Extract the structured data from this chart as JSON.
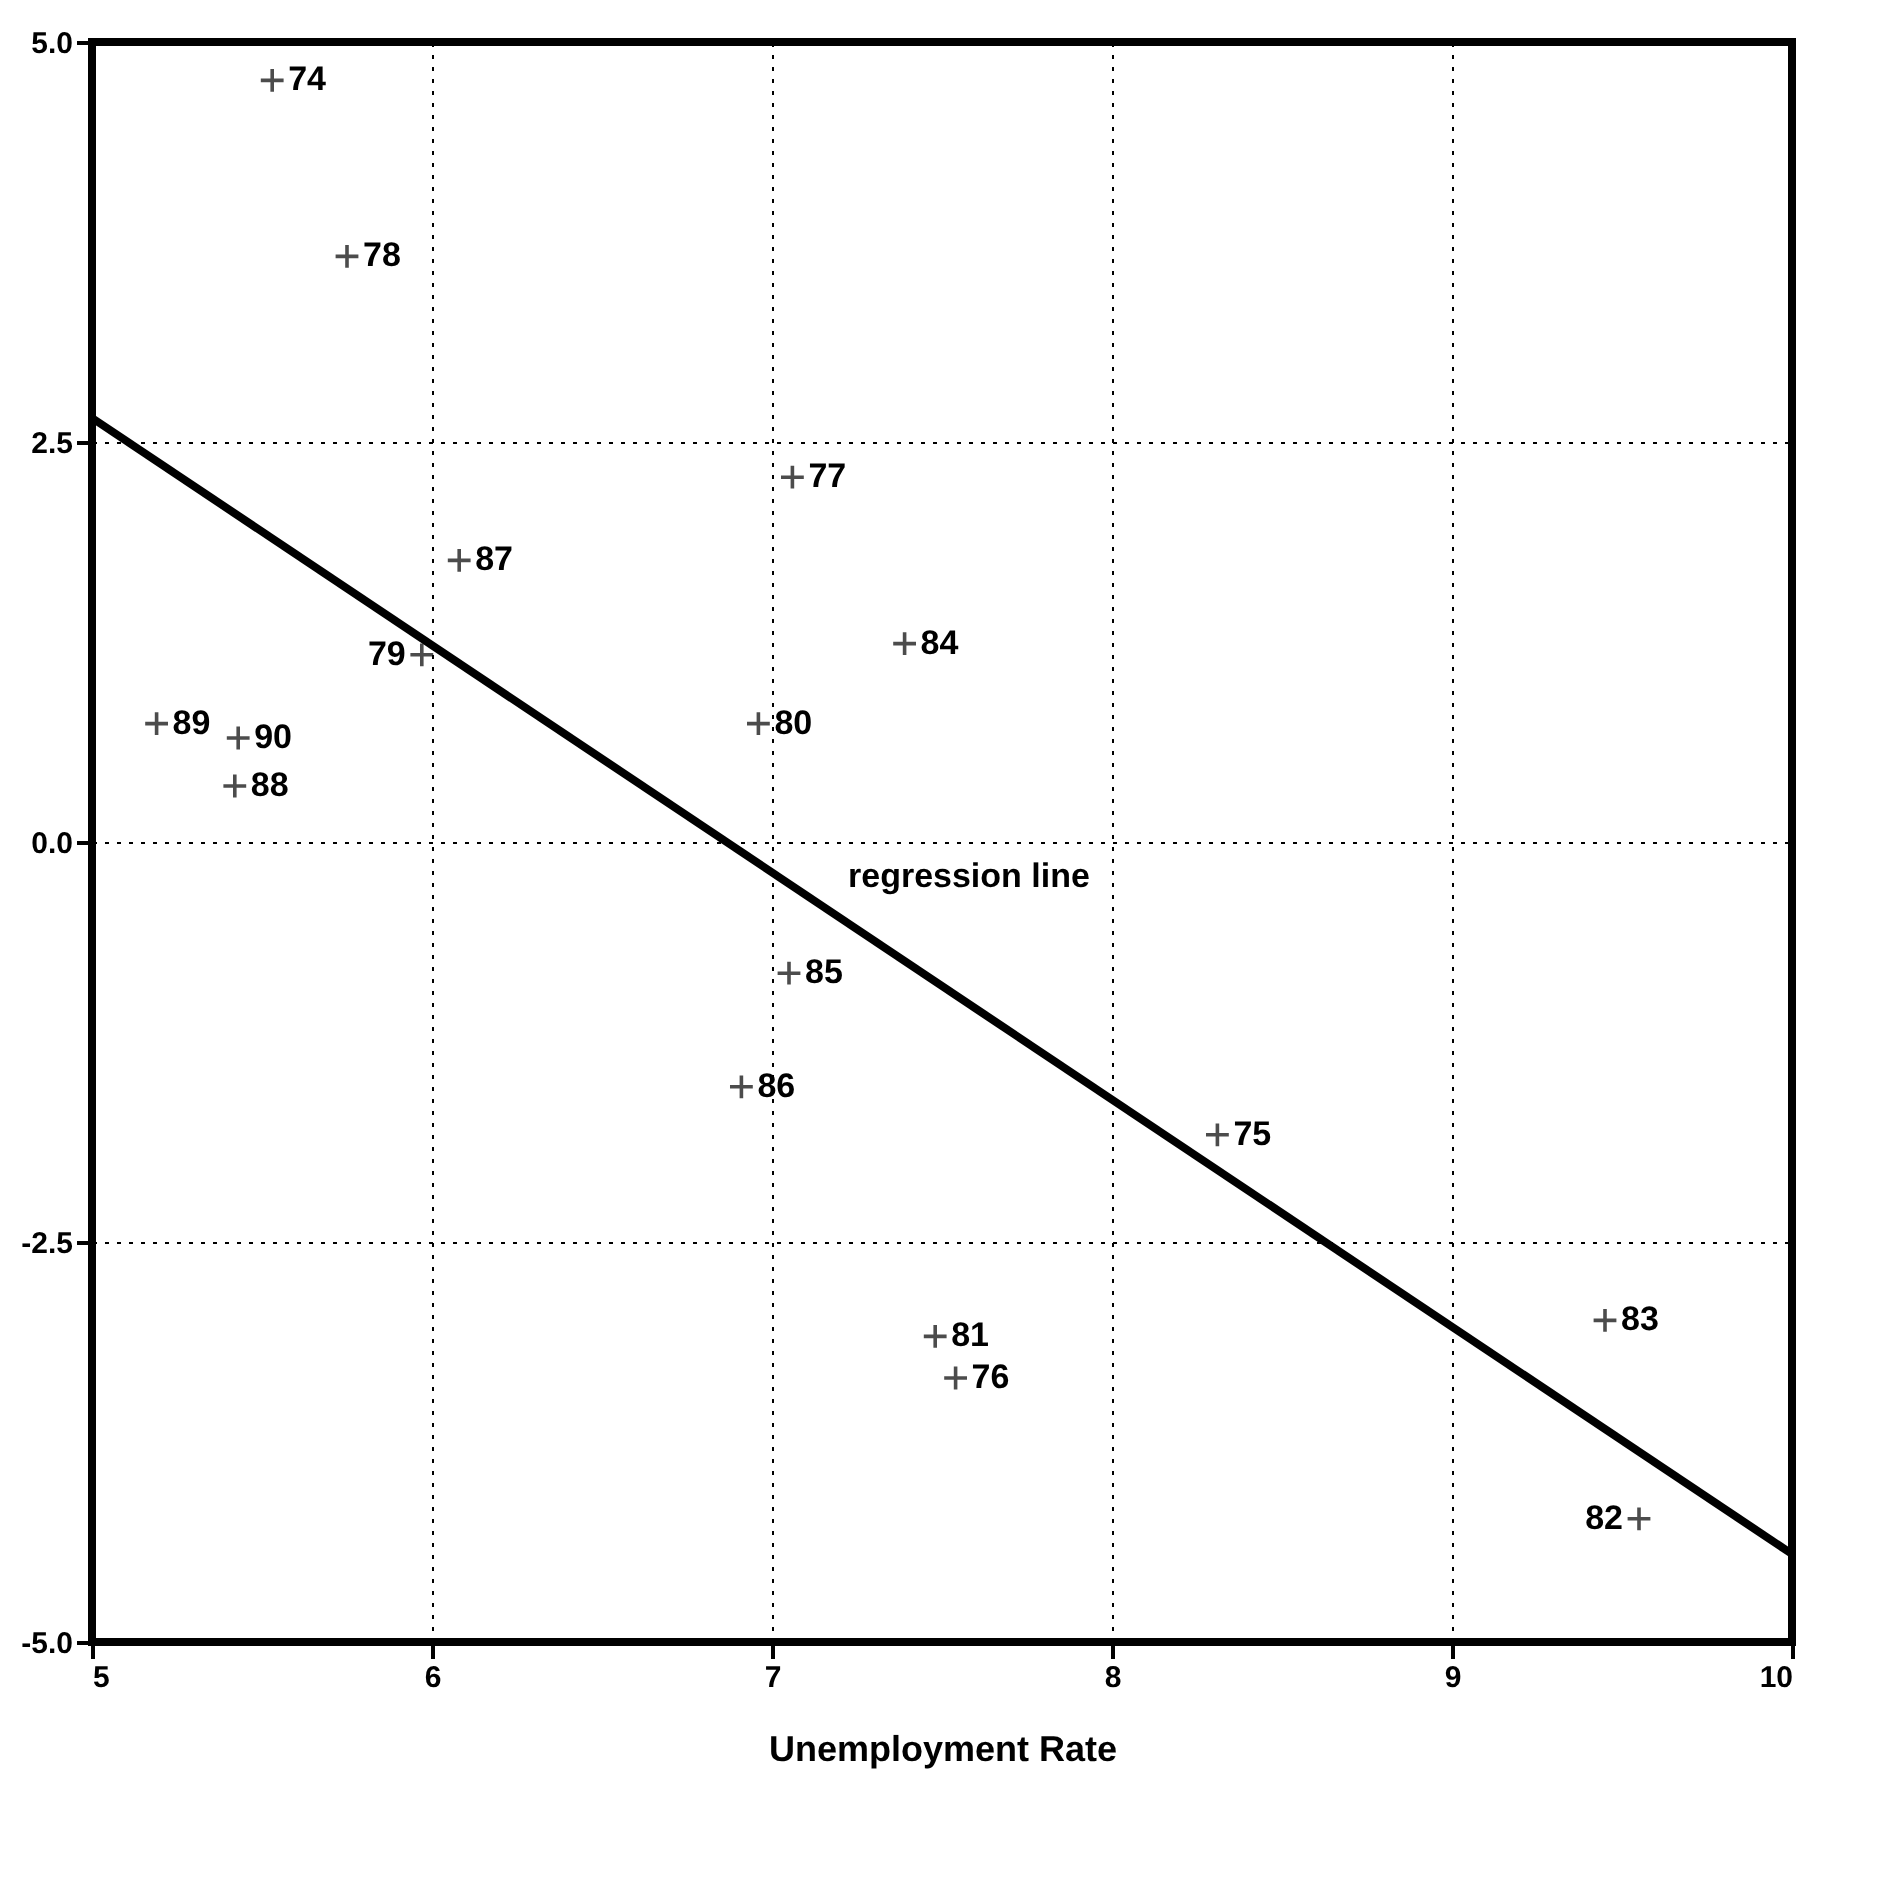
{
  "chart_data": {
    "type": "scatter",
    "xlabel": "Unemployment Rate",
    "marker": "cross",
    "grid": true,
    "xlim": [
      5,
      10
    ],
    "xticks": [
      5,
      6,
      7,
      8,
      9,
      10
    ],
    "ylim": [
      -5,
      5
    ],
    "yticks": [
      {
        "value": -5,
        "label": "-5.0"
      },
      {
        "value": -2.5,
        "label": "-2.5"
      },
      {
        "value": 0,
        "label": "0.0"
      },
      {
        "value": 2.5,
        "label": "2.5"
      },
      {
        "value": 5,
        "label": "5.0"
      }
    ],
    "series": [
      {
        "color": "#000000",
        "x": [
          5.53,
          5.75,
          7.06,
          6.08,
          7.39,
          5.97,
          6.96,
          5.19,
          5.43,
          5.42,
          7.05,
          6.91,
          8.31,
          9.45,
          7.48,
          7.54,
          9.55
        ],
        "values": [
          4.76,
          3.66,
          2.28,
          1.76,
          1.24,
          1.17,
          0.74,
          0.74,
          0.65,
          0.35,
          -0.82,
          -1.53,
          -1.83,
          -2.99,
          -3.09,
          -3.35,
          -4.23
        ]
      },
      {
        "type": "line",
        "marker": "none",
        "line_style": "solid",
        "color": "#000000",
        "x": [
          5,
          10
        ],
        "values": [
          2.65,
          -4.45
        ]
      }
    ],
    "annotations": [
      {
        "text": "74",
        "x": 5.53,
        "y": 4.76
      },
      {
        "text": "78",
        "x": 5.75,
        "y": 3.66
      },
      {
        "text": "77",
        "x": 7.06,
        "y": 2.28
      },
      {
        "text": "87",
        "x": 6.08,
        "y": 1.76
      },
      {
        "text": "84",
        "x": 7.39,
        "y": 1.24
      },
      {
        "text": "79",
        "x": 5.97,
        "y": 1.17
      },
      {
        "text": "80",
        "x": 6.96,
        "y": 0.74
      },
      {
        "text": "89",
        "x": 5.19,
        "y": 0.74
      },
      {
        "text": "90",
        "x": 5.43,
        "y": 0.65
      },
      {
        "text": "88",
        "x": 5.42,
        "y": 0.35
      },
      {
        "text": "85",
        "x": 7.05,
        "y": -0.82
      },
      {
        "text": "86",
        "x": 6.91,
        "y": -1.53
      },
      {
        "text": "75",
        "x": 8.31,
        "y": -1.83
      },
      {
        "text": "83",
        "x": 9.45,
        "y": -2.99
      },
      {
        "text": "81",
        "x": 7.48,
        "y": -3.09
      },
      {
        "text": "76",
        "x": 7.54,
        "y": -3.35
      },
      {
        "text": "82",
        "x": 9.55,
        "y": -4.23
      },
      {
        "text": "regression line",
        "x": 7.2,
        "y": -0.47
      }
    ]
  }
}
